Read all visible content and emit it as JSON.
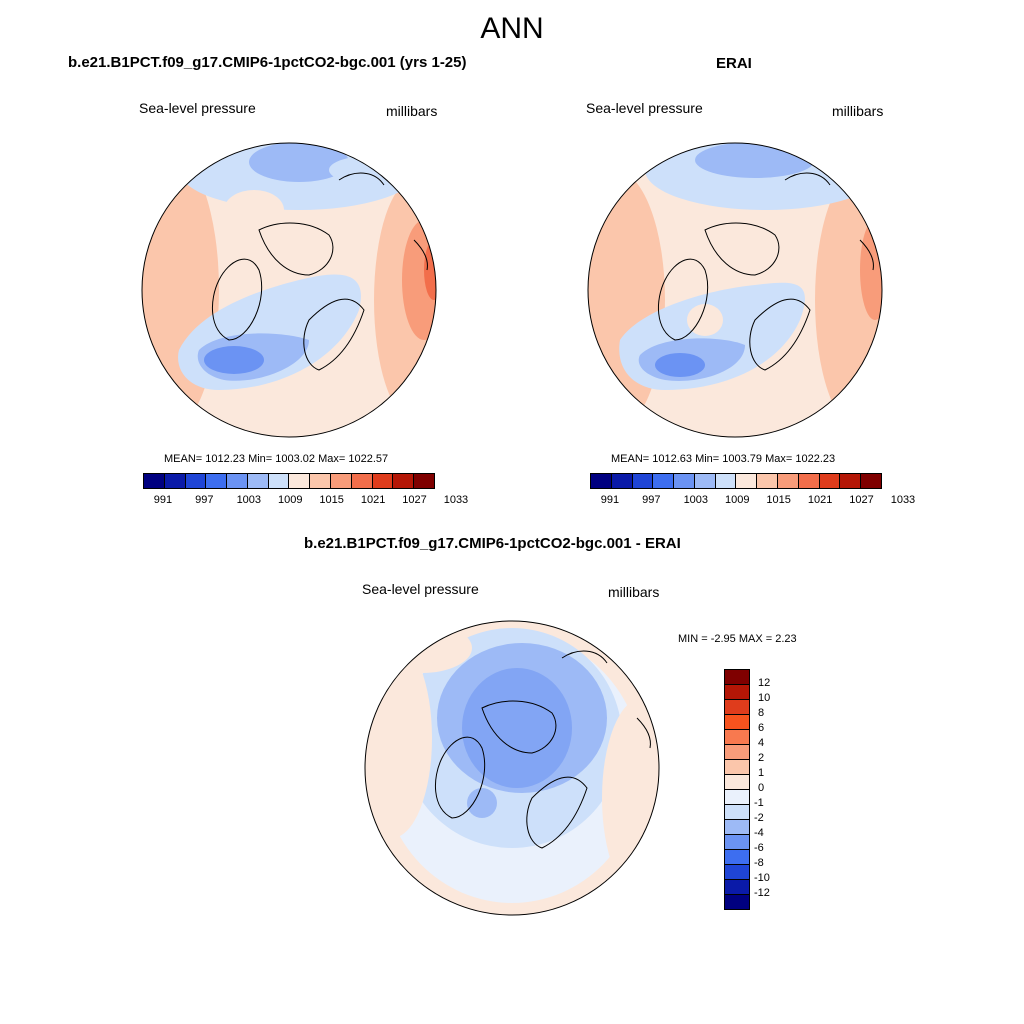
{
  "main_title": "ANN",
  "panels": [
    {
      "title": "b.e21.B1PCT.f09_g17.CMIP6-1pctCO2-bgc.001 (yrs 1-25)",
      "left_label": "Sea-level pressure",
      "right_label": "millibars",
      "stats": "MEAN= 1012.23  Min= 1003.02  Max= 1022.57"
    },
    {
      "title": "ERAI",
      "left_label": "Sea-level pressure",
      "right_label": "millibars",
      "stats": "MEAN= 1012.63  Min= 1003.79  Max= 1022.23"
    },
    {
      "title": "b.e21.B1PCT.f09_g17.CMIP6-1pctCO2-bgc.001 - ERAI",
      "left_label": "Sea-level pressure",
      "right_label": "millibars",
      "stats": "MIN =  -2.95 MAX =   2.23"
    }
  ],
  "abs_colorbar": {
    "colors": [
      "#000080",
      "#0a1aa8",
      "#1f45d6",
      "#3d6ef0",
      "#6b93f3",
      "#9dbaf6",
      "#cde0fa",
      "#fbe8dc",
      "#fbc6ab",
      "#f89c7a",
      "#f26e4b",
      "#df3c1c",
      "#b41606",
      "#7f0000"
    ],
    "tick_labels": [
      "991",
      "997",
      "1003",
      "1009",
      "1015",
      "1021",
      "1027",
      "1033"
    ]
  },
  "diff_colorbar": {
    "colors": [
      "#7f0000",
      "#b41606",
      "#df3c1c",
      "#f7531e",
      "#f8794f",
      "#f89c7a",
      "#fbc6ab",
      "#fbe8dc",
      "#eaf1fc",
      "#cde0fa",
      "#9dbaf6",
      "#6b93f3",
      "#3d6ef0",
      "#1f45d6",
      "#0a1aa8",
      "#000080"
    ],
    "tick_labels": [
      "12",
      "10",
      "8",
      "6",
      "4",
      "2",
      "1",
      "0",
      "-1",
      "-2",
      "-4",
      "-6",
      "-8",
      "-10",
      "-12"
    ]
  }
}
